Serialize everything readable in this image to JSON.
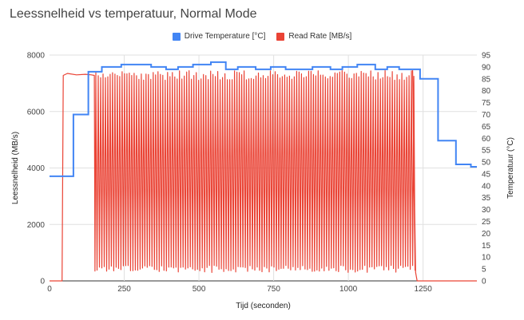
{
  "chart_data": {
    "type": "line",
    "title": "Leessnelheid vs temperatuur, Normal Mode",
    "xlabel": "Tijd (seconden)",
    "ylabel_left": "Leessnelheid (MB/s)",
    "ylabel_right": "Temperatuur (°C)",
    "xlim": [
      0,
      1430
    ],
    "ylim_left": [
      0,
      8000
    ],
    "ylim_right": [
      0,
      95
    ],
    "x_ticks": [
      0,
      250,
      500,
      750,
      1000,
      1250
    ],
    "y_left_ticks": [
      0,
      2000,
      4000,
      6000,
      8000
    ],
    "y_right_ticks": [
      0,
      5,
      10,
      15,
      20,
      25,
      30,
      35,
      40,
      45,
      50,
      55,
      60,
      65,
      70,
      75,
      80,
      85,
      90,
      95
    ],
    "grid": true,
    "legend_position": "top",
    "series": [
      {
        "name": "Drive Temperature [°C]",
        "color": "#4285f4",
        "axis": "right",
        "points": [
          [
            0,
            44
          ],
          [
            80,
            44
          ],
          [
            80,
            70
          ],
          [
            130,
            70
          ],
          [
            130,
            88
          ],
          [
            175,
            88
          ],
          [
            175,
            90
          ],
          [
            240,
            90
          ],
          [
            240,
            91
          ],
          [
            340,
            91
          ],
          [
            340,
            90
          ],
          [
            390,
            90
          ],
          [
            390,
            89
          ],
          [
            430,
            89
          ],
          [
            430,
            90
          ],
          [
            480,
            90
          ],
          [
            480,
            91
          ],
          [
            540,
            91
          ],
          [
            540,
            92
          ],
          [
            590,
            92
          ],
          [
            590,
            89
          ],
          [
            630,
            89
          ],
          [
            630,
            90
          ],
          [
            690,
            90
          ],
          [
            690,
            89
          ],
          [
            740,
            89
          ],
          [
            740,
            90
          ],
          [
            790,
            90
          ],
          [
            790,
            89
          ],
          [
            880,
            89
          ],
          [
            880,
            90
          ],
          [
            940,
            90
          ],
          [
            940,
            89
          ],
          [
            980,
            89
          ],
          [
            980,
            90
          ],
          [
            1030,
            90
          ],
          [
            1030,
            91
          ],
          [
            1090,
            91
          ],
          [
            1090,
            89
          ],
          [
            1130,
            89
          ],
          [
            1130,
            90
          ],
          [
            1170,
            90
          ],
          [
            1170,
            89
          ],
          [
            1240,
            89
          ],
          [
            1240,
            85
          ],
          [
            1300,
            85
          ],
          [
            1300,
            59
          ],
          [
            1360,
            59
          ],
          [
            1360,
            49
          ],
          [
            1410,
            49
          ],
          [
            1410,
            48
          ],
          [
            1430,
            48
          ]
        ]
      },
      {
        "name": "Read Rate [MB/s]",
        "color": "#ea4335",
        "axis": "left",
        "points": [
          [
            0,
            0
          ],
          [
            42,
            0
          ],
          [
            46,
            7280
          ],
          [
            60,
            7350
          ],
          [
            90,
            7300
          ],
          [
            120,
            7320
          ],
          [
            140,
            7300
          ],
          [
            150,
            7280
          ],
          [
            152,
            350
          ],
          [
            155,
            7400
          ],
          [
            1215,
            7450
          ],
          [
            1225,
            300
          ],
          [
            1230,
            0
          ],
          [
            1430,
            0
          ]
        ],
        "oscillation": {
          "from": 155,
          "to": 1225,
          "high": 7450,
          "low": 300,
          "period_s": 8
        }
      }
    ]
  }
}
